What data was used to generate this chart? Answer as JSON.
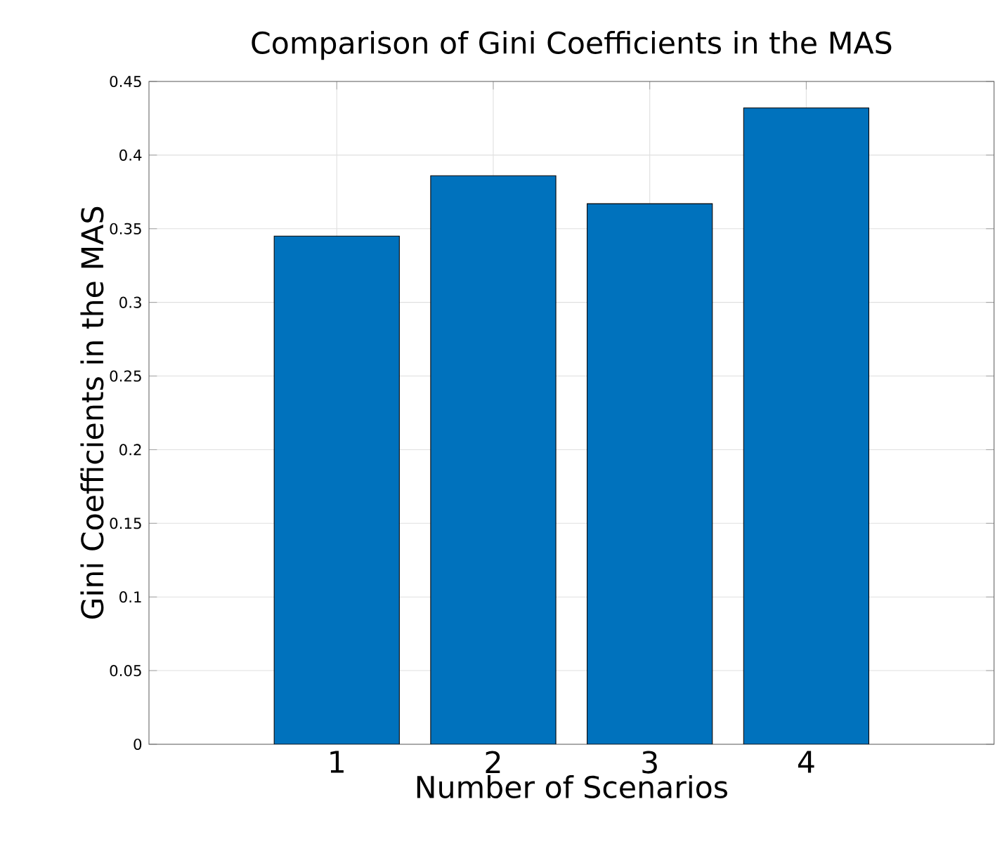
{
  "chart_data": {
    "type": "bar",
    "title": "Comparison of Gini Coefficients in the MAS",
    "xlabel": "Number of Scenarios",
    "ylabel": "Gini Coefficients in the MAS",
    "x": [
      1,
      2,
      3,
      4
    ],
    "values": [
      0.345,
      0.386,
      0.367,
      0.432
    ],
    "color": "#0072bd",
    "xlim": [
      -0.2,
      5.2
    ],
    "xticks": [
      1,
      2,
      3,
      4
    ],
    "ylim": [
      0,
      0.45
    ],
    "yticks": [
      0,
      0.05,
      0.1,
      0.15,
      0.2,
      0.25,
      0.3,
      0.35,
      0.4,
      0.45
    ],
    "grid": true
  }
}
